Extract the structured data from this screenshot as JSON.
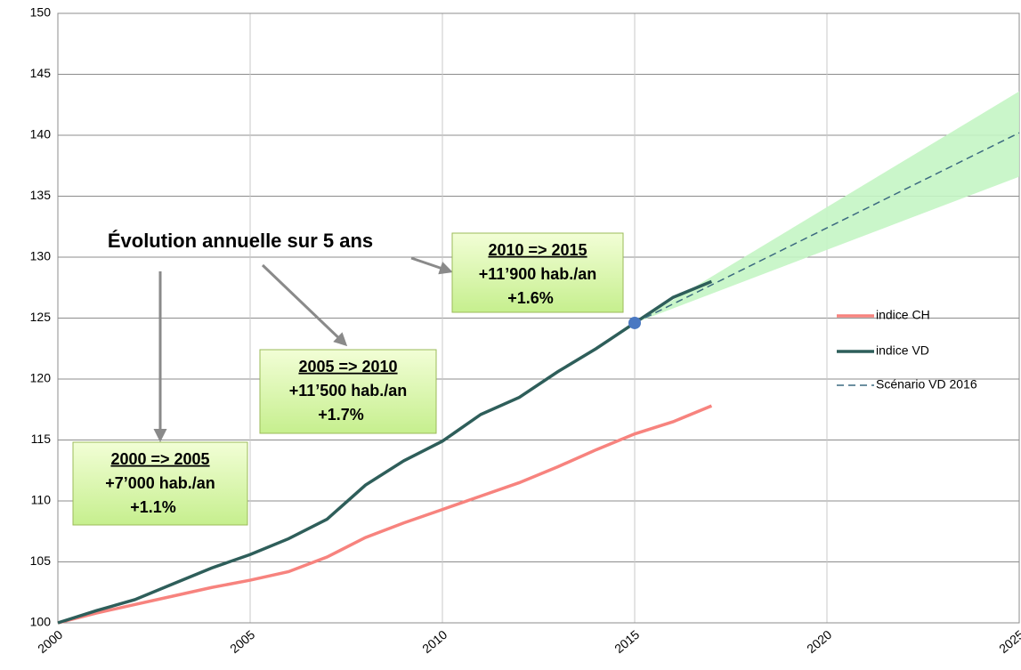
{
  "chart_data": {
    "type": "line",
    "x": [
      2000,
      2001,
      2002,
      2003,
      2004,
      2005,
      2006,
      2007,
      2008,
      2009,
      2010,
      2011,
      2012,
      2013,
      2014,
      2015,
      2016,
      2017
    ],
    "series": [
      {
        "name": "indice CH",
        "color": "#f7837e",
        "values": [
          100,
          100.8,
          101.5,
          102.2,
          102.9,
          103.5,
          104.2,
          105.4,
          107.0,
          108.2,
          109.3,
          110.4,
          111.5,
          112.8,
          114.2,
          115.5,
          116.5,
          117.8
        ]
      },
      {
        "name": "indice VD",
        "color": "#2e5e5a",
        "values": [
          100,
          101.0,
          101.9,
          103.2,
          104.5,
          105.6,
          106.9,
          108.5,
          111.3,
          113.3,
          114.9,
          117.1,
          118.5,
          120.6,
          122.5,
          124.6,
          126.7,
          128.0
        ]
      },
      {
        "name": "Scénario VD 2016",
        "color": "#3c6a80",
        "dashed": true,
        "x": [
          2015,
          2025
        ],
        "values": [
          124.6,
          140.2
        ]
      }
    ],
    "band": {
      "color": "#c4f5c4",
      "x": [
        2015,
        2025
      ],
      "lower": [
        124.6,
        136.6
      ],
      "upper": [
        124.6,
        143.6
      ]
    },
    "highlight": {
      "x": 2015,
      "value": 124.6,
      "color": "#4a78c2"
    },
    "xlim": [
      2000,
      2025
    ],
    "xticks": [
      2000,
      2005,
      2010,
      2015,
      2020,
      2025
    ],
    "ylim": [
      100,
      150
    ],
    "yticks": [
      100,
      105,
      110,
      115,
      120,
      125,
      130,
      135,
      140,
      145,
      150
    ],
    "grid": true,
    "legend": "right",
    "heading": "Évolution annuelle sur 5 ans",
    "annotations": [
      {
        "lines": [
          "2000  =>  2005",
          "+7’000 hab./an",
          "+1.1%"
        ]
      },
      {
        "lines": [
          "2005  =>  2010",
          "+11’500 hab./an",
          "+1.7%"
        ]
      },
      {
        "lines": [
          "2010  =>  2015",
          "+11’900 hab./an",
          "+1.6%"
        ]
      }
    ]
  }
}
